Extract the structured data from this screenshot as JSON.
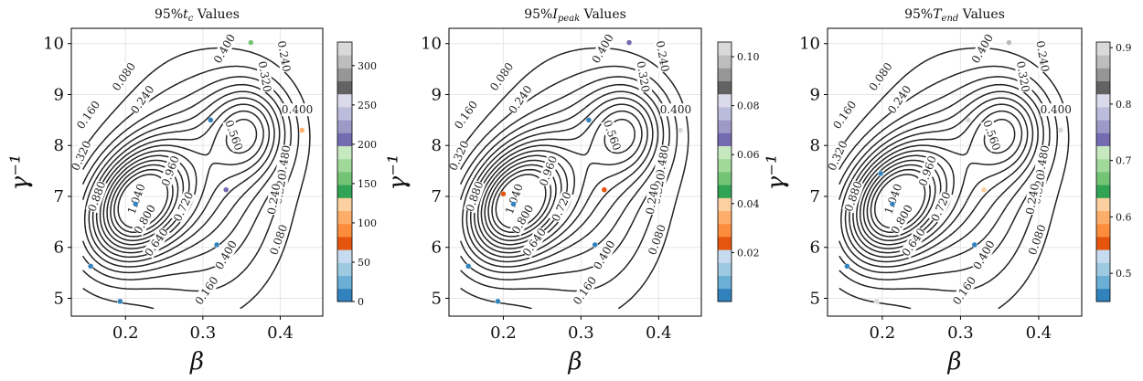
{
  "chart_data": [
    {
      "type": "scatter",
      "title": "95%t_c Values",
      "title_parts": {
        "prefix": "95%",
        "var": "t",
        "sub": "c",
        "suffix": " Values"
      },
      "xlabel": "β",
      "ylabel": "γ⁻¹",
      "xlim": [
        0.13,
        0.455
      ],
      "ylim": [
        4.65,
        10.3
      ],
      "xticks": [
        0.2,
        0.3,
        0.4
      ],
      "xtick_labels": [
        "0.2",
        "0.3",
        "0.4"
      ],
      "yticks": [
        5,
        6,
        7,
        8,
        9,
        10
      ],
      "ytick_labels": [
        "5",
        "6",
        "7",
        "8",
        "9",
        "10"
      ],
      "grid": true,
      "colorbar": {
        "min": 0,
        "max": 330,
        "ticks": [
          0,
          50,
          100,
          150,
          200,
          250,
          300
        ],
        "tick_labels": [
          "0",
          "50",
          "100",
          "150",
          "200",
          "250",
          "300"
        ]
      },
      "points": [
        {
          "x": 0.155,
          "y": 5.63,
          "v": 10
        },
        {
          "x": 0.193,
          "y": 4.94,
          "v": 10
        },
        {
          "x": 0.213,
          "y": 6.85,
          "v": 10
        },
        {
          "x": 0.31,
          "y": 8.5,
          "v": 10
        },
        {
          "x": 0.318,
          "y": 6.05,
          "v": 10
        },
        {
          "x": 0.33,
          "y": 7.13,
          "v": 210
        },
        {
          "x": 0.362,
          "y": 10.02,
          "v": 150
        },
        {
          "x": 0.428,
          "y": 8.3,
          "v": 105
        }
      ]
    },
    {
      "type": "scatter",
      "title": "95%I_peak Values",
      "title_parts": {
        "prefix": "95%",
        "var": "I",
        "sub": "peak",
        "suffix": " Values"
      },
      "xlabel": "β",
      "ylabel": "γ⁻¹",
      "xlim": [
        0.13,
        0.455
      ],
      "ylim": [
        4.65,
        10.3
      ],
      "xticks": [
        0.2,
        0.3,
        0.4
      ],
      "xtick_labels": [
        "0.2",
        "0.3",
        "0.4"
      ],
      "yticks": [
        5,
        6,
        7,
        8,
        9,
        10
      ],
      "ytick_labels": [
        "5",
        "6",
        "7",
        "8",
        "9",
        "10"
      ],
      "grid": true,
      "colorbar": {
        "min": 0.0,
        "max": 0.106,
        "ticks": [
          0.02,
          0.04,
          0.06,
          0.08,
          0.1
        ],
        "tick_labels": [
          "0.02",
          "0.04",
          "0.06",
          "0.08",
          "0.10"
        ]
      },
      "points": [
        {
          "x": 0.155,
          "y": 5.63,
          "v": 0.004
        },
        {
          "x": 0.193,
          "y": 4.94,
          "v": 0.004
        },
        {
          "x": 0.2,
          "y": 7.05,
          "v": 0.025
        },
        {
          "x": 0.213,
          "y": 6.85,
          "v": 0.004
        },
        {
          "x": 0.31,
          "y": 8.5,
          "v": 0.004
        },
        {
          "x": 0.318,
          "y": 6.05,
          "v": 0.004
        },
        {
          "x": 0.33,
          "y": 7.13,
          "v": 0.025
        },
        {
          "x": 0.362,
          "y": 10.02,
          "v": 0.066
        },
        {
          "x": 0.428,
          "y": 8.3,
          "v": 0.102
        }
      ]
    },
    {
      "type": "scatter",
      "title": "95%T_end Values",
      "title_parts": {
        "prefix": "95%",
        "var": "T",
        "sub": "end",
        "suffix": " Values"
      },
      "xlabel": "β",
      "ylabel": "γ⁻¹",
      "xlim": [
        0.13,
        0.455
      ],
      "ylim": [
        4.65,
        10.3
      ],
      "xticks": [
        0.2,
        0.3,
        0.4
      ],
      "xtick_labels": [
        "0.2",
        "0.3",
        "0.4"
      ],
      "yticks": [
        5,
        6,
        7,
        8,
        9,
        10
      ],
      "ytick_labels": [
        "5",
        "6",
        "7",
        "8",
        "9",
        "10"
      ],
      "grid": true,
      "colorbar": {
        "min": 0.45,
        "max": 0.91,
        "ticks": [
          0.5,
          0.6,
          0.7,
          0.8,
          0.9
        ],
        "tick_labels": [
          "0.5",
          "0.6",
          "0.7",
          "0.8",
          "0.9"
        ]
      },
      "points": [
        {
          "x": 0.155,
          "y": 5.63,
          "v": 0.46
        },
        {
          "x": 0.193,
          "y": 4.94,
          "v": 0.9
        },
        {
          "x": 0.198,
          "y": 7.45,
          "v": 0.46
        },
        {
          "x": 0.213,
          "y": 6.85,
          "v": 0.46
        },
        {
          "x": 0.31,
          "y": 8.5,
          "v": 0.9
        },
        {
          "x": 0.318,
          "y": 6.05,
          "v": 0.46
        },
        {
          "x": 0.33,
          "y": 7.13,
          "v": 0.62
        },
        {
          "x": 0.362,
          "y": 10.02,
          "v": 0.88
        },
        {
          "x": 0.428,
          "y": 8.3,
          "v": 0.9
        }
      ]
    }
  ],
  "contours": {
    "levels": [
      0.08,
      0.16,
      0.24,
      0.32,
      0.4,
      0.48,
      0.56,
      0.64,
      0.72,
      0.8,
      0.88,
      0.96,
      1.04,
      1.12
    ],
    "labels": [
      {
        "x": 0.152,
        "y": 8.6,
        "text": "0.160",
        "rot": -55
      },
      {
        "x": 0.143,
        "y": 7.8,
        "text": "0.320",
        "rot": -65
      },
      {
        "x": 0.163,
        "y": 7.0,
        "text": "0.880",
        "rot": -70
      },
      {
        "x": 0.198,
        "y": 9.35,
        "text": "0.080",
        "rot": -55
      },
      {
        "x": 0.222,
        "y": 8.9,
        "text": "0.240",
        "rot": -55
      },
      {
        "x": 0.225,
        "y": 6.55,
        "text": "0.800",
        "rot": -60
      },
      {
        "x": 0.24,
        "y": 6.1,
        "text": "0.640",
        "rot": -55
      },
      {
        "x": 0.214,
        "y": 6.95,
        "text": "1.040",
        "rot": -70
      },
      {
        "x": 0.258,
        "y": 7.5,
        "text": "0.960",
        "rot": -70
      },
      {
        "x": 0.275,
        "y": 6.8,
        "text": "0.720",
        "rot": -65
      },
      {
        "x": 0.328,
        "y": 9.9,
        "text": "0.400",
        "rot": -60
      },
      {
        "x": 0.33,
        "y": 5.85,
        "text": "0.400",
        "rot": -60
      },
      {
        "x": 0.305,
        "y": 5.15,
        "text": "0.160",
        "rot": -55
      },
      {
        "x": 0.34,
        "y": 8.2,
        "text": "0.560",
        "rot": 70
      },
      {
        "x": 0.38,
        "y": 9.35,
        "text": "0.320",
        "rot": 80
      },
      {
        "x": 0.405,
        "y": 9.75,
        "text": "0.240",
        "rot": 80
      },
      {
        "x": 0.422,
        "y": 8.7,
        "text": "0.400",
        "rot": 0
      },
      {
        "x": 0.405,
        "y": 7.7,
        "text": "0.480",
        "rot": -80
      },
      {
        "x": 0.4,
        "y": 7.15,
        "text": "0.320",
        "rot": -80
      },
      {
        "x": 0.392,
        "y": 6.95,
        "text": "0.240",
        "rot": -80
      },
      {
        "x": 0.398,
        "y": 6.15,
        "text": "0.080",
        "rot": -70
      }
    ]
  }
}
